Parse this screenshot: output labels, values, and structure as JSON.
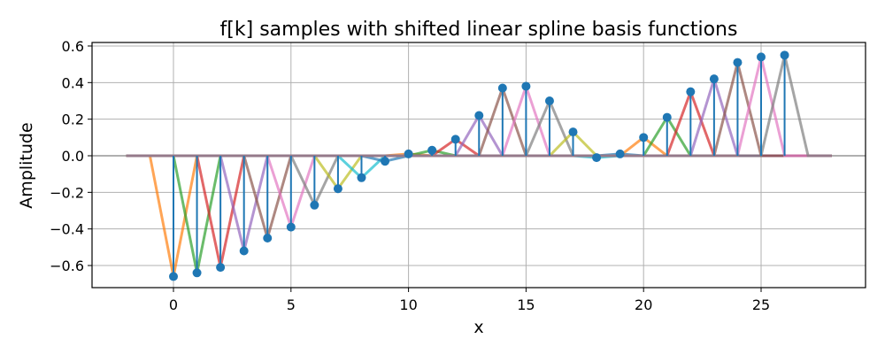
{
  "chart_data": {
    "type": "line",
    "title": "f[k] samples with shifted linear spline basis functions",
    "xlabel": "x",
    "ylabel": "Amplitude",
    "xlim": [
      -3.5,
      29.5
    ],
    "ylim": [
      -0.72,
      0.62
    ],
    "xticks": [
      0,
      5,
      10,
      15,
      20,
      25
    ],
    "xtick_labels": [
      "0",
      "5",
      "10",
      "15",
      "20",
      "25"
    ],
    "yticks": [
      0.6,
      0.4,
      0.2,
      0.0,
      -0.2,
      -0.4,
      -0.6
    ],
    "ytick_labels": [
      "0.6",
      "0.4",
      "0.2",
      "0.0",
      "−0.2",
      "−0.4",
      "−0.6"
    ],
    "grid": true,
    "legend": null,
    "stem_series": {
      "name": "f[k]",
      "color": "#1f77b4",
      "k": [
        0,
        1,
        2,
        3,
        4,
        5,
        6,
        7,
        8,
        9,
        10,
        11,
        12,
        13,
        14,
        15,
        16,
        17,
        18,
        19,
        20,
        21,
        22,
        23,
        24,
        25,
        26
      ],
      "values": [
        -0.66,
        -0.64,
        -0.61,
        -0.52,
        -0.45,
        -0.39,
        -0.27,
        -0.18,
        -0.12,
        -0.03,
        0.01,
        0.03,
        0.09,
        0.22,
        0.37,
        0.38,
        0.3,
        0.13,
        -0.01,
        0.01,
        0.1,
        0.21,
        0.35,
        0.42,
        0.51,
        0.54,
        0.55
      ]
    },
    "basis_functions": {
      "description": "Each sample k scaled triangle (linear spline) from k-1 to k+1, drawn over x in [-2, 28] with baseline zero elsewhere",
      "x_range": [
        -2,
        28
      ],
      "color_cycle": [
        "#ff7f0e",
        "#2ca02c",
        "#d62728",
        "#9467bd",
        "#8c564b",
        "#e377c2",
        "#7f7f7f",
        "#bcbd22",
        "#17becf",
        "#1f77b4"
      ]
    },
    "zero_line_color": "#b0b0b0"
  }
}
